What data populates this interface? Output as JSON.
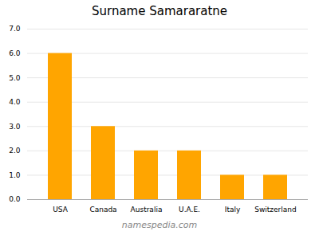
{
  "chart_data": {
    "type": "bar",
    "title": "Surname Samararatne",
    "categories": [
      "USA",
      "Canada",
      "Australia",
      "U.A.E.",
      "Italy",
      "Switzerland"
    ],
    "values": [
      6,
      3,
      2,
      2,
      1,
      1
    ],
    "color": "#FFA500",
    "ylim": [
      0,
      7
    ],
    "yticks": [
      0,
      1,
      2,
      3,
      4,
      5,
      6,
      7
    ],
    "grid": true,
    "annotations": [
      "namespedia.com"
    ]
  }
}
